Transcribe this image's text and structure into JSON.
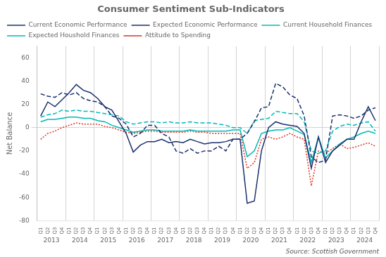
{
  "chart_data": {
    "type": "line",
    "title": "Consumer Sentiment Sub-Indicators",
    "y_label": "Net Balance",
    "source": "Source: Scottish Government",
    "categories": [
      "Q1",
      "Q2",
      "Q3",
      "Q4",
      "Q1",
      "Q2",
      "Q3",
      "Q4",
      "Q1",
      "Q2",
      "Q3",
      "Q4",
      "Q1",
      "Q2",
      "Q3",
      "Q4",
      "Q1",
      "Q2",
      "Q3",
      "Q4",
      "Q1",
      "Q2",
      "Q3",
      "Q4",
      "Q1",
      "Q2",
      "Q3",
      "Q4",
      "Q1",
      "Q2",
      "Q3",
      "Q4",
      "Q1",
      "Q2",
      "Q3",
      "Q4",
      "Q1",
      "Q2",
      "Q3",
      "Q4",
      "Q1",
      "Q2",
      "Q3",
      "Q4",
      "Q1",
      "Q2",
      "Q3",
      "Q4"
    ],
    "category_groups": [
      "2013",
      "2014",
      "2015",
      "2016",
      "2017",
      "2018",
      "2019",
      "2020",
      "2021",
      "2022",
      "2023",
      "2024"
    ],
    "ylim": [
      -80,
      70
    ],
    "yticks": [
      -80,
      -60,
      -40,
      -20,
      0,
      20,
      40,
      60
    ],
    "grid": false,
    "legend": "upper left",
    "series": [
      {
        "name": "Current Economic Performance",
        "color": "#1a2f6e",
        "line_style": "solid",
        "values": [
          10,
          22,
          18,
          24,
          30,
          37,
          32,
          30,
          25,
          18,
          15,
          5,
          -5,
          -21,
          -15,
          -12,
          -12,
          -10,
          -13,
          -12,
          -13,
          -10,
          -12,
          -14,
          -13,
          -13,
          -12,
          -10,
          -10,
          -65,
          -63,
          -20,
          0,
          5,
          3,
          2,
          1,
          -5,
          -35,
          -8,
          -30,
          -20,
          -15,
          -10,
          -10,
          5,
          18,
          6
        ]
      },
      {
        "name": "Expected Economic Performance",
        "color": "#1a2f6e",
        "line_style": "dashed",
        "values": [
          29,
          27,
          26,
          30,
          28,
          30,
          25,
          23,
          22,
          18,
          10,
          8,
          3,
          -8,
          -5,
          2,
          2,
          -5,
          -8,
          -20,
          -22,
          -18,
          -22,
          -20,
          -20,
          -16,
          -20,
          -10,
          -10,
          -5,
          5,
          17,
          18,
          38,
          35,
          28,
          25,
          10,
          -25,
          -30,
          -28,
          10,
          11,
          10,
          8,
          10,
          15,
          17
        ]
      },
      {
        "name": "Current Household Finances",
        "color": "#00b8b8",
        "line_style": "solid",
        "values": [
          5,
          7,
          7,
          8,
          9,
          9,
          8,
          8,
          6,
          5,
          2,
          0,
          -2,
          -4,
          -3,
          -2,
          -2,
          -3,
          -3,
          -3,
          -3,
          -2,
          -3,
          -3,
          -3,
          -3,
          -3,
          -2,
          -2,
          -25,
          -20,
          -5,
          -3,
          -2,
          -2,
          0,
          -3,
          -6,
          -30,
          -8,
          -26,
          -20,
          -14,
          -10,
          -8,
          -5,
          -3,
          -5
        ]
      },
      {
        "name": "Expected Houshold Finances",
        "color": "#00b8b8",
        "line_style": "dashed",
        "values": [
          9,
          11,
          12,
          15,
          14,
          15,
          14,
          14,
          13,
          12,
          11,
          10,
          5,
          3,
          4,
          5,
          5,
          4,
          5,
          4,
          4,
          5,
          4,
          4,
          4,
          3,
          2,
          0,
          0,
          -5,
          6,
          7,
          8,
          14,
          13,
          12,
          12,
          5,
          -20,
          -22,
          -20,
          -3,
          1,
          3,
          2,
          4,
          5,
          -3
        ]
      },
      {
        "name": "Attitude to Spending",
        "color": "#e03020",
        "line_style": "dotted",
        "values": [
          -10,
          -5,
          -3,
          0,
          2,
          4,
          3,
          3,
          3,
          1,
          0,
          -2,
          -4,
          -5,
          -4,
          -3,
          -3,
          -4,
          -4,
          -4,
          -4,
          -3,
          -4,
          -4,
          -5,
          -5,
          -5,
          -5,
          -5,
          -35,
          -30,
          -10,
          -8,
          -10,
          -8,
          -5,
          -8,
          -10,
          -50,
          -20,
          -22,
          -18,
          -14,
          -18,
          -17,
          -15,
          -13,
          -16
        ]
      }
    ]
  }
}
